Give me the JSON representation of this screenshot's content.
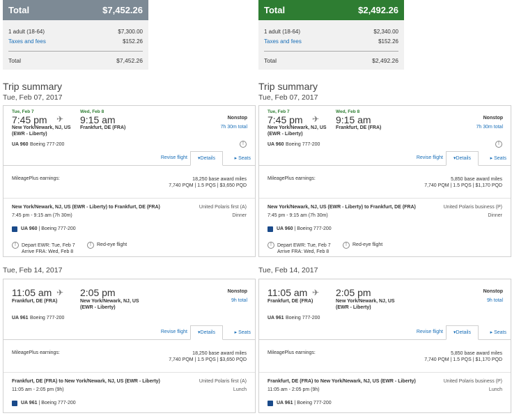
{
  "columns": [
    {
      "price": {
        "header_label": "Total",
        "header_amount": "$7,452.26",
        "rows": [
          {
            "k": "1 adult (18-64)",
            "v": "$7,300.00"
          },
          {
            "k": "Taxes and fees",
            "v": "$152.26"
          }
        ],
        "total_label": "Total",
        "total_amount": "$7,452.26"
      },
      "trip_title": "Trip summary",
      "segments": [
        {
          "date": "Tue, Feb 07, 2017",
          "dep_label": "Tue, Feb 7",
          "arr_label": "Wed, Feb 8",
          "dep_time": "7:45 pm",
          "arr_time": "9:15 am",
          "dep_city": "New York/Newark, NJ, US (EWR - Liberty)",
          "arr_city": "Frankfurt, DE (FRA)",
          "nonstop": "Nonstop",
          "duration": "7h 30m total",
          "flight_num": "UA 960",
          "aircraft": "Boeing 777-200",
          "revise": "Revise flight",
          "details_tab": "Details",
          "seats_tab": "Seats",
          "mp_label": "MileagePlus earnings:",
          "mp_line1": "18,250 base award miles",
          "mp_line2": "7,740 PQM | 1.5 PQS | $3,650 PQD",
          "route": "New York/Newark, NJ, US (EWR - Liberty) to Frankfurt, DE (FRA)",
          "times": "7:45 pm - 9:15 am (7h 30m)",
          "cabin": "United Polaris first (A)",
          "meal": "Dinner",
          "ua_text_bold": "UA 960",
          "ua_text_rest": " | Boeing 777-200",
          "note1_line1": "Depart EWR: Tue, Feb 7",
          "note1_line2": "Arrive FRA: Wed, Feb 8",
          "note2": "Red-eye flight"
        },
        {
          "date": "Tue, Feb 14, 2017",
          "dep_time": "11:05 am",
          "arr_time": "2:05 pm",
          "dep_city": "Frankfurt, DE (FRA)",
          "arr_city": "New York/Newark, NJ, US (EWR - Liberty)",
          "nonstop": "Nonstop",
          "duration": "9h total",
          "flight_num": "UA 961",
          "aircraft": "Boeing 777-200",
          "revise": "Revise flight",
          "details_tab": "Details",
          "seats_tab": "Seats",
          "mp_label": "MileagePlus earnings:",
          "mp_line1": "18,250 base award miles",
          "mp_line2": "7,740 PQM | 1.5 PQS | $3,650 PQD",
          "route": "Frankfurt, DE (FRA) to New York/Newark, NJ, US (EWR - Liberty)",
          "times": "11:05 am - 2:05 pm (9h)",
          "cabin": "United Polaris first (A)",
          "meal": "Lunch",
          "ua_text_bold": "UA 961",
          "ua_text_rest": " | Boeing 777-200"
        }
      ]
    },
    {
      "price": {
        "header_label": "Total",
        "header_amount": "$2,492.26",
        "rows": [
          {
            "k": "1 adult (18-64)",
            "v": "$2,340.00"
          },
          {
            "k": "Taxes and fees",
            "v": "$152.26"
          }
        ],
        "total_label": "Total",
        "total_amount": "$2,492.26"
      },
      "trip_title": "Trip summary",
      "segments": [
        {
          "date": "Tue, Feb 07, 2017",
          "dep_label": "Tue, Feb 7",
          "arr_label": "Wed, Feb 8",
          "dep_time": "7:45 pm",
          "arr_time": "9:15 am",
          "dep_city": "New York/Newark, NJ, US (EWR - Liberty)",
          "arr_city": "Frankfurt, DE (FRA)",
          "nonstop": "Nonstop",
          "duration": "7h 30m total",
          "flight_num": "UA 960",
          "aircraft": "Boeing 777-200",
          "revise": "Revise flight",
          "details_tab": "Details",
          "seats_tab": "Seats",
          "mp_label": "MileagePlus earnings:",
          "mp_line1": "5,850 base award miles",
          "mp_line2": "7,740 PQM | 1.5 PQS | $1,170 PQD",
          "route": "New York/Newark, NJ, US (EWR - Liberty) to Frankfurt, DE (FRA)",
          "times": "7:45 pm - 9:15 am (7h 30m)",
          "cabin": "United Polaris business (P)",
          "meal": "Dinner",
          "ua_text_bold": "UA 960",
          "ua_text_rest": " | Boeing 777-200",
          "note1_line1": "Depart EWR: Tue, Feb 7",
          "note1_line2": "Arrive FRA: Wed, Feb 8",
          "note2": "Red-eye flight"
        },
        {
          "date": "Tue, Feb 14, 2017",
          "dep_time": "11:05 am",
          "arr_time": "2:05 pm",
          "dep_city": "Frankfurt, DE (FRA)",
          "arr_city": "New York/Newark, NJ, US (EWR - Liberty)",
          "nonstop": "Nonstop",
          "duration": "9h total",
          "flight_num": "UA 961",
          "aircraft": "Boeing 777-200",
          "revise": "Revise flight",
          "details_tab": "Details",
          "seats_tab": "Seats",
          "mp_label": "MileagePlus earnings:",
          "mp_line1": "5,850 base award miles",
          "mp_line2": "7,740 PQM | 1.5 PQS | $1,170 PQD",
          "route": "Frankfurt, DE (FRA) to New York/Newark, NJ, US (EWR - Liberty)",
          "times": "11:05 am - 2:05 pm (9h)",
          "cabin": "United Polaris business (P)",
          "meal": "Lunch",
          "ua_text_bold": "UA 961",
          "ua_text_rest": " | Boeing 777-200"
        }
      ]
    }
  ],
  "icons": {
    "plane": "airplane-icon",
    "info": "info-icon",
    "caret_down": "caret-down-icon",
    "caret_right": "caret-right-icon",
    "ua_logo": "united-logo-icon"
  },
  "colors": {
    "left_header": "#7d8a95",
    "right_header": "#2e7d32",
    "link": "#1a6fb8",
    "date_green": "#2e7d32"
  }
}
